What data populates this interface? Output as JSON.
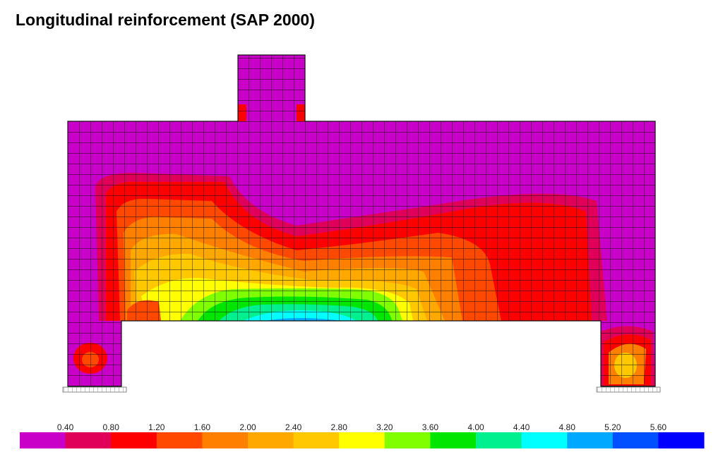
{
  "title": "Longitudinal reinforcement (SAP 2000)",
  "legend": {
    "labels": [
      "0.40",
      "0.80",
      "1.20",
      "1.60",
      "2.00",
      "2.40",
      "2.80",
      "3.20",
      "3.60",
      "4.00",
      "4.40",
      "4.80",
      "5.20",
      "5.60"
    ],
    "colors": [
      "#c800c8",
      "#e0005a",
      "#ff0000",
      "#ff4800",
      "#ff8000",
      "#ffa800",
      "#ffc800",
      "#ffff00",
      "#80ff00",
      "#00e600",
      "#00f090",
      "#00ffff",
      "#00a8ff",
      "#0050ff",
      "#0000ff"
    ]
  }
}
